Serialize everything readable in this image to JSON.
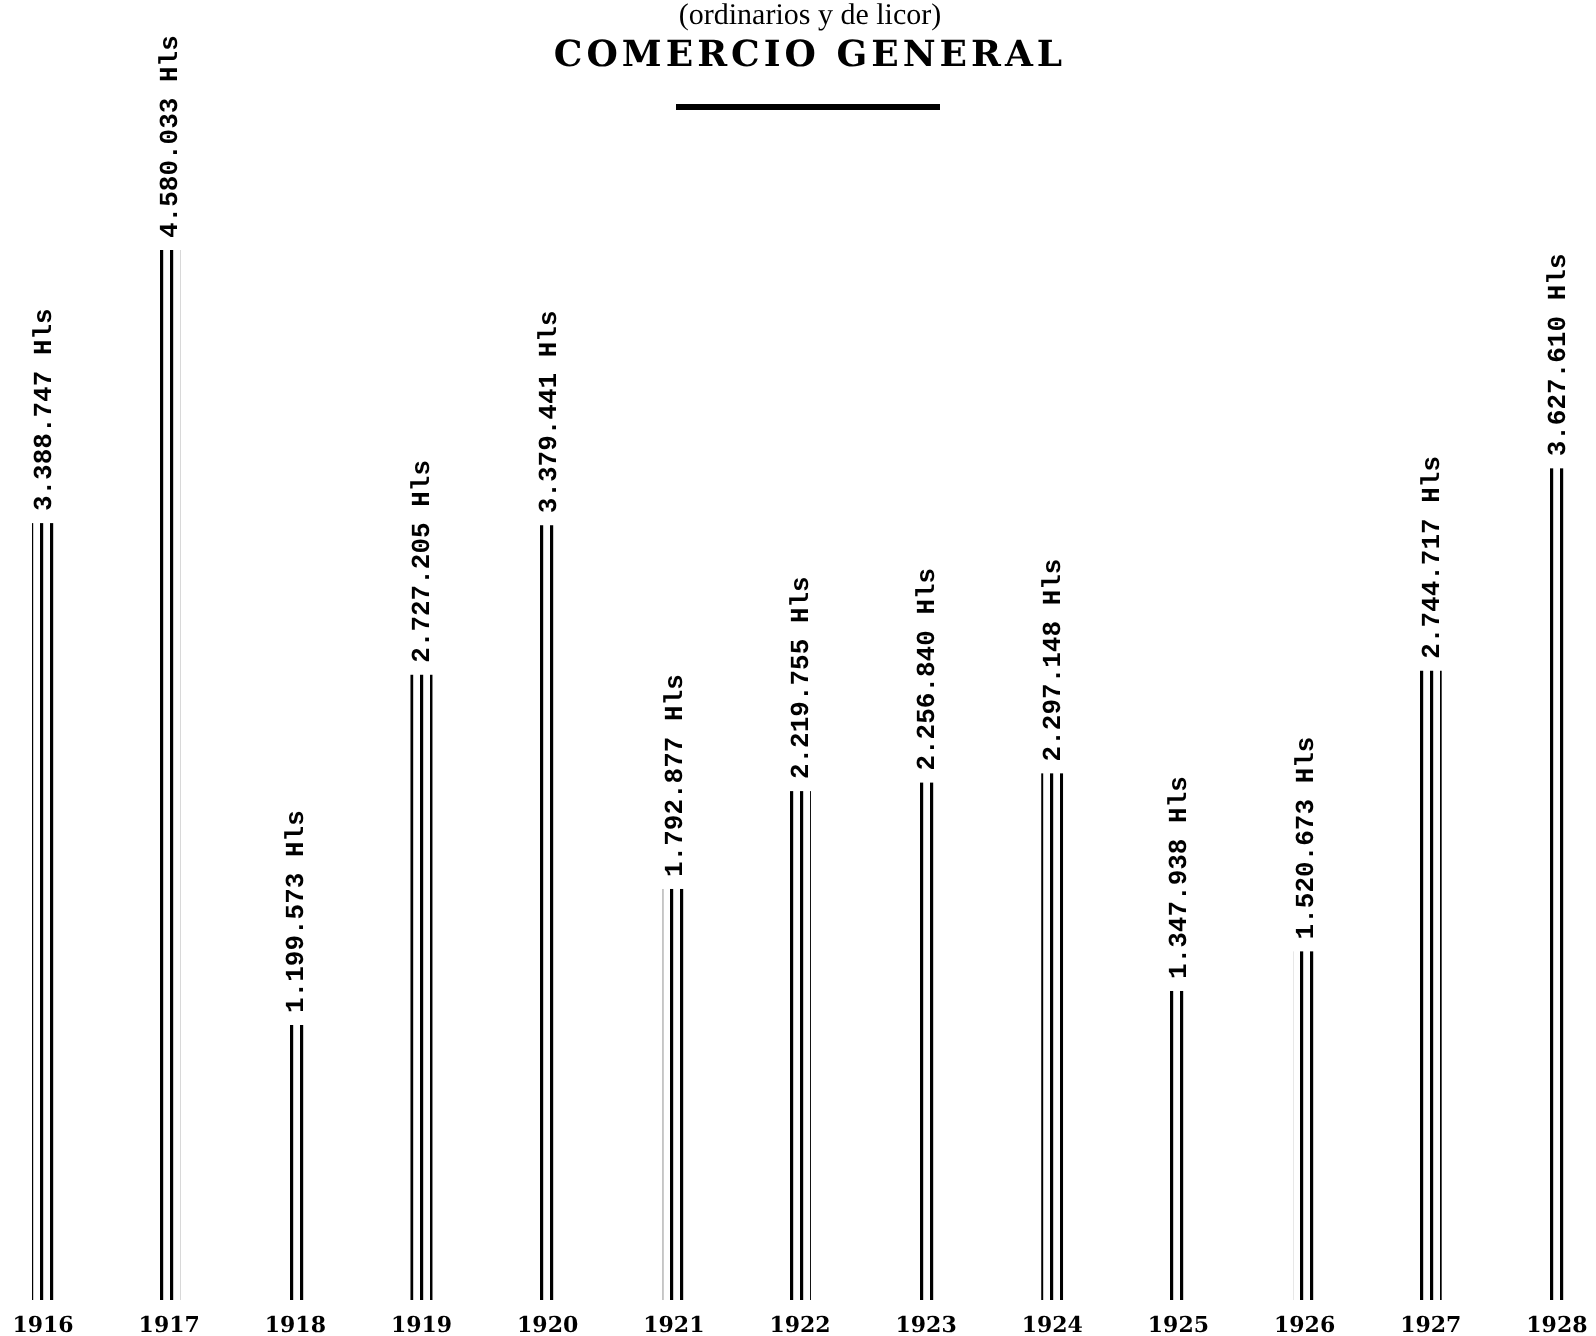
{
  "chart_data": {
    "type": "bar",
    "title": "COMERCIO GENERAL",
    "subtitle": "(ordinarios y de licor)",
    "categories": [
      "1916",
      "1917",
      "1918",
      "1919",
      "1920",
      "1921",
      "1922",
      "1923",
      "1924",
      "1925",
      "1926",
      "1927",
      "1928"
    ],
    "values": [
      3388747,
      4580033,
      1199573,
      2727205,
      3379441,
      1792877,
      2219755,
      2256840,
      2297148,
      1347938,
      1520673,
      2744717,
      3627610
    ],
    "value_labels": [
      "3.388.747 Hls",
      "4.580.033 Hls",
      "1.199.573 Hls",
      "2.727.205 Hls",
      "3.379.441 Hls",
      "1.792.877 Hls",
      "2.219.755 Hls",
      "2.256.840 Hls",
      "2.297.148 Hls",
      "1.347.938 Hls",
      "1.520.673 Hls",
      "2.744.717 Hls",
      "3.627.610 Hls"
    ],
    "color": "#000000",
    "grid": false,
    "legend": false
  }
}
